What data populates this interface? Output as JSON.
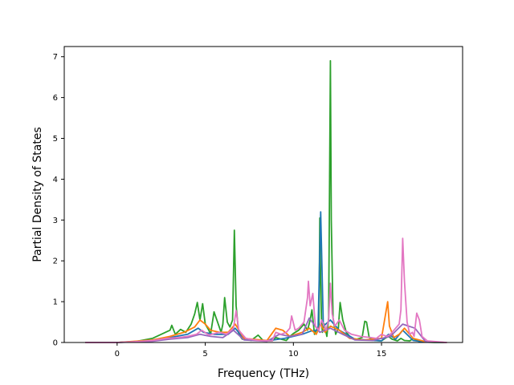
{
  "chart_data": {
    "type": "line",
    "xlabel": "Frequency (THz)",
    "ylabel": "Partial Density of States",
    "xlim": [
      -3,
      19.6
    ],
    "ylim": [
      0,
      7.25
    ],
    "xticks": [
      0,
      5,
      10,
      15
    ],
    "yticks": [
      0,
      1,
      2,
      3,
      4,
      5,
      6,
      7
    ],
    "grid": false,
    "series": [
      {
        "color": "#2ca02c",
        "x": [
          -1.8,
          0,
          1,
          2,
          2.5,
          3,
          3.1,
          3.3,
          3.6,
          3.9,
          4.2,
          4.4,
          4.55,
          4.7,
          4.85,
          5.0,
          5.2,
          5.3,
          5.5,
          5.7,
          5.9,
          6.0,
          6.1,
          6.25,
          6.4,
          6.55,
          6.65,
          6.75,
          6.9,
          7.1,
          7.3,
          7.6,
          8.0,
          8.3,
          8.8,
          9.0,
          9.3,
          9.6,
          9.8,
          10.0,
          10.3,
          10.6,
          10.8,
          10.95,
          11.05,
          11.2,
          11.35,
          11.45,
          11.5,
          11.55,
          11.6,
          11.65,
          11.75,
          11.9,
          12.0,
          12.1,
          12.15,
          12.25,
          12.4,
          12.55,
          12.65,
          12.8,
          13.0,
          13.3,
          13.6,
          13.9,
          14.05,
          14.15,
          14.3,
          14.6,
          15.0,
          15.2,
          15.4,
          15.6,
          15.9,
          16.1,
          16.3,
          16.6,
          16.8,
          17.0,
          17.2,
          17.5,
          18.0,
          18.7
        ],
        "y": [
          0,
          0,
          0.02,
          0.1,
          0.2,
          0.3,
          0.42,
          0.2,
          0.32,
          0.25,
          0.45,
          0.7,
          0.98,
          0.55,
          0.95,
          0.45,
          0.3,
          0.2,
          0.75,
          0.5,
          0.25,
          0.45,
          1.1,
          0.5,
          0.38,
          0.55,
          2.75,
          0.9,
          0.2,
          0.08,
          0.1,
          0.05,
          0.18,
          0.04,
          0.04,
          0.12,
          0.08,
          0.05,
          0.15,
          0.22,
          0.3,
          0.45,
          0.3,
          0.55,
          0.8,
          0.2,
          0.35,
          0.4,
          3.05,
          1.5,
          0.5,
          0.25,
          0.45,
          0.15,
          0.6,
          6.9,
          3.0,
          0.6,
          0.2,
          0.35,
          0.98,
          0.55,
          0.25,
          0.1,
          0.08,
          0.12,
          0.52,
          0.5,
          0.12,
          0.05,
          0.04,
          0.1,
          0.15,
          0.08,
          0.04,
          0.1,
          0.05,
          0.04,
          0.1,
          0.05,
          0.02,
          0.01,
          0,
          0
        ]
      },
      {
        "color": "#1f77b4",
        "x": [
          -1.8,
          0,
          2,
          3,
          4,
          4.6,
          4.9,
          5.5,
          6.3,
          6.7,
          7.2,
          8.5,
          9.5,
          10.5,
          11.0,
          11.4,
          11.55,
          11.7,
          12.1,
          12.6,
          13.5,
          15.0,
          15.4,
          15.8,
          16.2,
          16.8,
          17.5,
          18.7
        ],
        "y": [
          0,
          0,
          0.05,
          0.12,
          0.2,
          0.35,
          0.25,
          0.2,
          0.2,
          0.35,
          0.08,
          0.04,
          0.1,
          0.2,
          0.28,
          0.3,
          3.2,
          0.4,
          0.55,
          0.3,
          0.08,
          0.04,
          0.2,
          0.08,
          0.3,
          0.05,
          0.01,
          0
        ]
      },
      {
        "color": "#ff7f0e",
        "x": [
          -1.8,
          0,
          2,
          3,
          3.8,
          4.4,
          4.7,
          5.0,
          5.3,
          5.8,
          6.3,
          6.7,
          7.2,
          8.5,
          9.0,
          9.4,
          9.8,
          10.5,
          10.9,
          11.3,
          11.55,
          11.8,
          12.1,
          12.6,
          13.2,
          14.0,
          15.0,
          15.35,
          15.45,
          15.7,
          16.0,
          16.3,
          16.8,
          17.5,
          18.7
        ],
        "y": [
          0,
          0,
          0.06,
          0.15,
          0.25,
          0.38,
          0.55,
          0.45,
          0.3,
          0.25,
          0.25,
          0.45,
          0.1,
          0.05,
          0.35,
          0.3,
          0.15,
          0.25,
          0.35,
          0.2,
          0.45,
          0.25,
          0.4,
          0.3,
          0.1,
          0.06,
          0.1,
          1.0,
          0.4,
          0.12,
          0.2,
          0.35,
          0.1,
          0.02,
          0
        ]
      },
      {
        "color": "#9467bd",
        "x": [
          -1.8,
          0,
          2,
          3,
          4,
          4.7,
          5.3,
          6.0,
          6.6,
          7.2,
          8.5,
          9.2,
          9.8,
          10.5,
          10.9,
          11.5,
          12.1,
          12.8,
          13.5,
          14.5,
          15.5,
          16.2,
          16.9,
          17.5,
          18.7
        ],
        "y": [
          0,
          0,
          0.03,
          0.08,
          0.12,
          0.2,
          0.15,
          0.12,
          0.3,
          0.06,
          0.03,
          0.2,
          0.15,
          0.2,
          0.6,
          0.25,
          0.35,
          0.2,
          0.06,
          0.05,
          0.15,
          0.45,
          0.35,
          0.02,
          0
        ]
      },
      {
        "color": "#e377c2",
        "x": [
          -1.8,
          0,
          1,
          2,
          2.8,
          3.5,
          4.0,
          4.5,
          4.8,
          5.2,
          5.8,
          6.2,
          6.6,
          6.75,
          6.9,
          7.3,
          8.0,
          8.8,
          9.0,
          9.3,
          9.6,
          9.8,
          9.9,
          10.1,
          10.3,
          10.6,
          10.8,
          10.85,
          10.95,
          11.1,
          11.25,
          11.45,
          11.6,
          11.85,
          12.0,
          12.1,
          12.2,
          12.35,
          12.6,
          12.9,
          13.3,
          13.8,
          14.4,
          14.7,
          15.0,
          15.3,
          15.5,
          15.8,
          16.0,
          16.1,
          16.2,
          16.3,
          16.45,
          16.6,
          16.75,
          16.85,
          17.0,
          17.15,
          17.3,
          17.6,
          18.7
        ],
        "y": [
          0,
          0,
          0.02,
          0.05,
          0.1,
          0.12,
          0.15,
          0.2,
          0.3,
          0.18,
          0.25,
          0.2,
          0.35,
          0.78,
          0.3,
          0.1,
          0.05,
          0.04,
          0.25,
          0.2,
          0.25,
          0.35,
          0.65,
          0.3,
          0.35,
          0.5,
          1.1,
          1.5,
          0.9,
          1.2,
          0.4,
          0.3,
          0.55,
          0.3,
          0.55,
          1.45,
          0.7,
          0.4,
          0.55,
          0.3,
          0.2,
          0.15,
          0.12,
          0.1,
          0.2,
          0.15,
          0.2,
          0.35,
          0.45,
          0.8,
          2.55,
          1.5,
          0.5,
          0.2,
          0.25,
          0.15,
          0.72,
          0.55,
          0.15,
          0.04,
          0
        ]
      }
    ]
  }
}
